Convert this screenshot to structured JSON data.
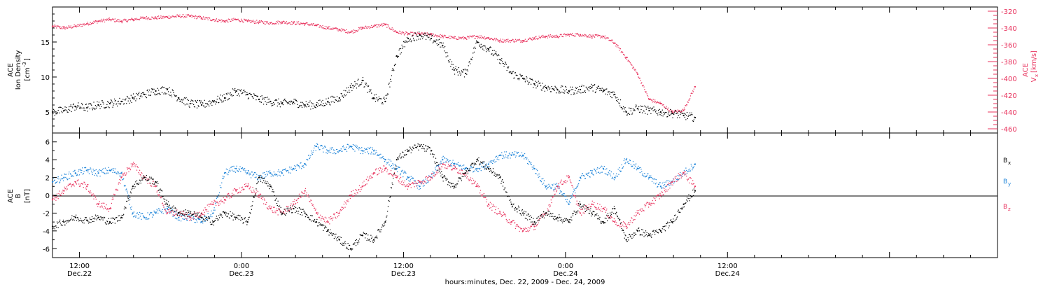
{
  "chart_data": [
    {
      "type": "scatter",
      "ylabel": "ACE Ion Density [cm^-3]",
      "ylabel_lines": [
        "ACE",
        "Ion Density",
        "[cm",
        "-3",
        "]"
      ],
      "ylim": [
        2,
        20
      ],
      "yticks": [
        "5",
        "10",
        "15"
      ],
      "y2label_lines": [
        "ACE",
        "V",
        "x",
        "[km/s]"
      ],
      "y2lim": [
        -465,
        -315
      ],
      "y2ticks": [
        "-320",
        "-340",
        "-360",
        "-380",
        "-400",
        "-420",
        "-440",
        "-460"
      ],
      "colors": {
        "density": "#000000",
        "vx": "#e8335e"
      },
      "series": [
        {
          "name": "",
          "axis": "left",
          "color": "#000000",
          "x": [
            0,
            1,
            2,
            3,
            4,
            5,
            6,
            7,
            8,
            9,
            10,
            11,
            12,
            13,
            14,
            15,
            16,
            17,
            18,
            19,
            20,
            21,
            22,
            23,
            24,
            25,
            26,
            27,
            28,
            29,
            30,
            31,
            32,
            33,
            34,
            35,
            36,
            37,
            38,
            39,
            40,
            41,
            42,
            43,
            44,
            45,
            46,
            47,
            48,
            49,
            50,
            51,
            52,
            53,
            54,
            55,
            56
          ],
          "values": [
            5.0,
            5.2,
            5.8,
            5.6,
            6.0,
            6.2,
            6.5,
            7.0,
            7.5,
            8.0,
            8.2,
            7.0,
            6.2,
            6.0,
            6.5,
            7.0,
            8.0,
            7.5,
            6.8,
            6.5,
            6.2,
            6.4,
            6.0,
            6.0,
            6.5,
            7.0,
            8.5,
            9.5,
            7.0,
            6.5,
            13.0,
            15.5,
            16.0,
            15.5,
            14.5,
            11.0,
            10.5,
            15.0,
            14.0,
            12.5,
            10.5,
            9.8,
            9.0,
            8.5,
            8.2,
            8.0,
            8.2,
            8.5,
            8.0,
            7.5,
            5.0,
            5.5,
            5.2,
            5.0,
            4.8,
            4.5,
            4.2
          ]
        },
        {
          "name": "",
          "axis": "right",
          "color": "#e8335e",
          "x": [
            0,
            1,
            2,
            3,
            4,
            5,
            6,
            7,
            8,
            9,
            10,
            11,
            12,
            13,
            14,
            15,
            16,
            17,
            18,
            19,
            20,
            21,
            22,
            23,
            24,
            25,
            26,
            27,
            28,
            29,
            30,
            31,
            32,
            33,
            34,
            35,
            36,
            37,
            38,
            39,
            40,
            41,
            42,
            43,
            44,
            45,
            46,
            47,
            48,
            49,
            50,
            51,
            52,
            53,
            54,
            55,
            56
          ],
          "values": [
            -338,
            -340,
            -338,
            -335,
            -332,
            -330,
            -332,
            -330,
            -328,
            -328,
            -327,
            -326,
            -326,
            -328,
            -330,
            -332,
            -330,
            -332,
            -333,
            -334,
            -333,
            -334,
            -335,
            -337,
            -340,
            -342,
            -345,
            -340,
            -338,
            -336,
            -345,
            -347,
            -347,
            -348,
            -350,
            -352,
            -352,
            -350,
            -352,
            -355,
            -355,
            -355,
            -352,
            -350,
            -350,
            -348,
            -348,
            -350,
            -350,
            -358,
            -375,
            -395,
            -425,
            -430,
            -440,
            -438,
            -410
          ]
        }
      ]
    },
    {
      "type": "scatter",
      "ylabel_lines": [
        "ACE",
        "B",
        "[nT]"
      ],
      "ylim": [
        -7,
        7
      ],
      "yticks": [
        "-6",
        "-4",
        "-2",
        "0",
        "2",
        "4",
        "6"
      ],
      "xtick_times": [
        "12:00",
        "0:00",
        "12:00",
        "0:00",
        "12:00"
      ],
      "xtick_dates": [
        "Dec.22",
        "Dec.23",
        "Dec.23",
        "Dec.24",
        "Dec.24"
      ],
      "xlabel": "hours:minutes, Dec. 22, 2009 - Dec. 24, 2009",
      "legend_placement": "right",
      "series": [
        {
          "name": "B",
          "sub": "x",
          "color": "#000000",
          "x": [
            0,
            1,
            2,
            3,
            4,
            5,
            6,
            7,
            8,
            9,
            10,
            11,
            12,
            13,
            14,
            15,
            16,
            17,
            18,
            19,
            20,
            21,
            22,
            23,
            24,
            25,
            26,
            27,
            28,
            29,
            30,
            31,
            32,
            33,
            34,
            35,
            36,
            37,
            38,
            39,
            40,
            41,
            42,
            43,
            44,
            45,
            46,
            47,
            48,
            49,
            50,
            51,
            52,
            53,
            54,
            55,
            56
          ],
          "values": [
            -3.5,
            -3.0,
            -2.5,
            -2.8,
            -2.5,
            -3.0,
            -2.5,
            1.0,
            2.0,
            1.5,
            -1.0,
            -2.0,
            -2.0,
            -2.5,
            -3.0,
            -2.0,
            -2.5,
            -3.0,
            2.0,
            1.0,
            -2.0,
            -1.5,
            -2.0,
            -3.0,
            -4.0,
            -5.0,
            -6.0,
            -4.5,
            -5.0,
            -3.0,
            4.0,
            5.0,
            5.5,
            5.0,
            2.0,
            1.0,
            2.5,
            4.0,
            3.0,
            2.0,
            -1.0,
            -2.0,
            -3.0,
            -2.0,
            -2.5,
            -3.0,
            -1.0,
            -2.0,
            -3.0,
            -1.5,
            -5.0,
            -4.0,
            -4.5,
            -4.0,
            -3.0,
            -1.0,
            0.5
          ]
        },
        {
          "name": "B",
          "sub": "y",
          "color": "#1a82d8",
          "x": [
            0,
            1,
            2,
            3,
            4,
            5,
            6,
            7,
            8,
            9,
            10,
            11,
            12,
            13,
            14,
            15,
            16,
            17,
            18,
            19,
            20,
            21,
            22,
            23,
            24,
            25,
            26,
            27,
            28,
            29,
            30,
            31,
            32,
            33,
            34,
            35,
            36,
            37,
            38,
            39,
            40,
            41,
            42,
            43,
            44,
            45,
            46,
            47,
            48,
            49,
            50,
            51,
            52,
            53,
            54,
            55,
            56
          ],
          "values": [
            1.5,
            2.0,
            2.5,
            2.8,
            2.5,
            2.8,
            2.5,
            -2.0,
            -2.5,
            -2.0,
            -1.5,
            -2.5,
            -2.5,
            -3.0,
            -2.0,
            2.5,
            3.0,
            2.5,
            2.0,
            2.5,
            2.5,
            3.0,
            3.5,
            5.5,
            5.0,
            5.0,
            5.5,
            5.0,
            5.0,
            4.0,
            3.0,
            2.0,
            1.0,
            2.0,
            4.0,
            3.5,
            3.0,
            3.0,
            3.5,
            4.5,
            4.5,
            4.5,
            3.0,
            1.0,
            1.0,
            -1.0,
            2.0,
            2.5,
            3.0,
            2.0,
            4.0,
            3.0,
            2.0,
            1.0,
            1.5,
            2.5,
            3.5
          ]
        },
        {
          "name": "B",
          "sub": "z",
          "color": "#e8335e",
          "x": [
            0,
            1,
            2,
            3,
            4,
            5,
            6,
            7,
            8,
            9,
            10,
            11,
            12,
            13,
            14,
            15,
            16,
            17,
            18,
            19,
            20,
            21,
            22,
            23,
            24,
            25,
            26,
            27,
            28,
            29,
            30,
            31,
            32,
            33,
            34,
            35,
            36,
            37,
            38,
            39,
            40,
            41,
            42,
            43,
            44,
            45,
            46,
            47,
            48,
            49,
            50,
            51,
            52,
            53,
            54,
            55,
            56
          ],
          "values": [
            -0.5,
            0.5,
            1.5,
            1.0,
            -1.0,
            -1.5,
            2.0,
            3.5,
            2.0,
            1.0,
            -2.0,
            -2.0,
            -2.5,
            -2.0,
            -1.0,
            -0.5,
            0.5,
            1.0,
            0.0,
            -1.5,
            -2.0,
            -1.0,
            0.5,
            -2.0,
            -3.0,
            -2.0,
            0.0,
            1.0,
            2.5,
            3.0,
            2.0,
            1.0,
            1.5,
            2.0,
            3.5,
            3.0,
            2.5,
            1.0,
            -1.0,
            -2.0,
            -3.0,
            -4.0,
            -3.5,
            -2.0,
            1.0,
            2.0,
            -2.0,
            -1.0,
            -1.5,
            -3.0,
            -3.5,
            -2.0,
            -1.0,
            0.0,
            1.5,
            2.5,
            1.0
          ]
        }
      ]
    }
  ],
  "x_axis": {
    "range_hours": [
      0,
      70
    ]
  }
}
